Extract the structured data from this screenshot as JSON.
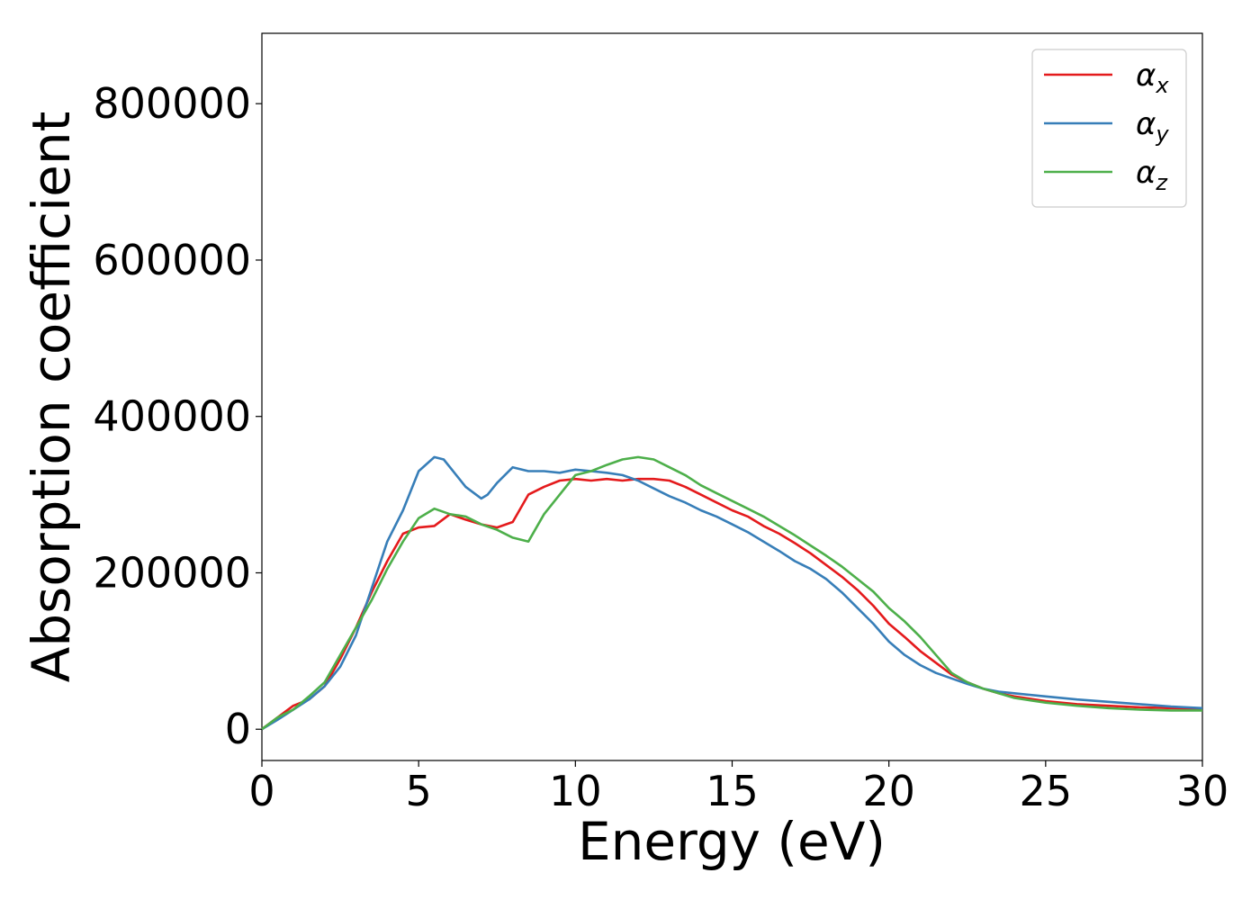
{
  "chart_data": {
    "type": "line",
    "xlabel": "Energy (eV)",
    "ylabel": "Absorption coefficient",
    "xlim": [
      0,
      30
    ],
    "ylim": [
      -40000,
      890000
    ],
    "xticks": [
      0,
      5,
      10,
      15,
      20,
      25,
      30
    ],
    "yticks": [
      0,
      200000,
      400000,
      600000,
      800000
    ],
    "grid": false,
    "legend_position": "top-right",
    "series": [
      {
        "name": "αx",
        "symbol": "α",
        "subscript": "x",
        "color": "#e41a1c",
        "x": [
          0,
          0.5,
          1,
          1.5,
          2,
          2.5,
          3,
          3.5,
          4,
          4.5,
          5,
          5.5,
          6,
          6.5,
          7,
          7.5,
          8,
          8.5,
          9,
          9.5,
          10,
          10.5,
          11,
          11.5,
          12,
          12.5,
          13,
          13.5,
          14,
          14.5,
          15,
          15.5,
          16,
          16.5,
          17,
          17.5,
          18,
          18.5,
          19,
          19.5,
          20,
          20.5,
          21,
          21.5,
          22,
          22.5,
          23,
          23.5,
          24,
          25,
          26,
          27,
          28,
          29,
          30
        ],
        "y": [
          0,
          15000,
          30000,
          38000,
          55000,
          90000,
          130000,
          175000,
          215000,
          250000,
          258000,
          260000,
          275000,
          268000,
          262000,
          258000,
          265000,
          300000,
          310000,
          318000,
          320000,
          318000,
          320000,
          318000,
          320000,
          320000,
          318000,
          310000,
          300000,
          290000,
          280000,
          272000,
          260000,
          250000,
          238000,
          225000,
          210000,
          195000,
          178000,
          158000,
          135000,
          118000,
          100000,
          85000,
          70000,
          60000,
          52000,
          46000,
          42000,
          36000,
          32000,
          30000,
          28000,
          27000,
          26000
        ]
      },
      {
        "name": "αy",
        "symbol": "α",
        "subscript": "y",
        "color": "#377eb8",
        "x": [
          0,
          0.5,
          1,
          1.5,
          2,
          2.5,
          3,
          3.5,
          4,
          4.5,
          5,
          5.5,
          5.8,
          6,
          6.5,
          7,
          7.2,
          7.5,
          8,
          8.5,
          9,
          9.5,
          10,
          10.5,
          11,
          11.5,
          12,
          12.5,
          13,
          13.5,
          14,
          14.5,
          15,
          15.5,
          16,
          16.5,
          17,
          17.5,
          18,
          18.5,
          19,
          19.5,
          20,
          20.5,
          21,
          21.5,
          22,
          22.5,
          23,
          23.5,
          24,
          25,
          26,
          27,
          28,
          29,
          30
        ],
        "y": [
          0,
          12000,
          25000,
          38000,
          55000,
          80000,
          120000,
          180000,
          240000,
          280000,
          330000,
          348000,
          345000,
          335000,
          310000,
          295000,
          300000,
          315000,
          335000,
          330000,
          330000,
          328000,
          332000,
          330000,
          328000,
          325000,
          318000,
          308000,
          298000,
          290000,
          280000,
          272000,
          262000,
          252000,
          240000,
          228000,
          215000,
          205000,
          192000,
          175000,
          155000,
          135000,
          112000,
          95000,
          82000,
          72000,
          65000,
          58000,
          52000,
          48000,
          46000,
          42000,
          38000,
          35000,
          32000,
          29000,
          27000
        ]
      },
      {
        "name": "αz",
        "symbol": "α",
        "subscript": "z",
        "color": "#4daf4a",
        "x": [
          0,
          0.5,
          1,
          1.5,
          2,
          2.5,
          3,
          3.5,
          4,
          4.5,
          5,
          5.5,
          6,
          6.5,
          7,
          7.5,
          8,
          8.5,
          9,
          9.5,
          10,
          10.5,
          11,
          11.5,
          12,
          12.5,
          13,
          13.5,
          14,
          14.5,
          15,
          15.5,
          16,
          16.5,
          17,
          17.5,
          18,
          18.5,
          19,
          19.5,
          20,
          20.5,
          21,
          21.5,
          22,
          22.5,
          23,
          23.5,
          24,
          25,
          26,
          27,
          28,
          29,
          30
        ],
        "y": [
          0,
          15000,
          25000,
          42000,
          60000,
          95000,
          130000,
          165000,
          205000,
          240000,
          270000,
          282000,
          275000,
          272000,
          262000,
          255000,
          245000,
          240000,
          275000,
          300000,
          325000,
          330000,
          338000,
          345000,
          348000,
          345000,
          335000,
          325000,
          312000,
          302000,
          292000,
          282000,
          272000,
          260000,
          248000,
          235000,
          222000,
          208000,
          192000,
          176000,
          155000,
          138000,
          118000,
          95000,
          72000,
          60000,
          52000,
          46000,
          40000,
          34000,
          30000,
          27000,
          25000,
          24000,
          24000
        ]
      }
    ]
  }
}
